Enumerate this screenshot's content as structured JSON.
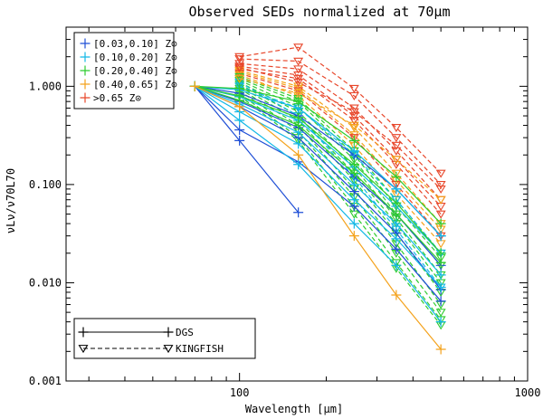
{
  "chart_data": {
    "type": "line",
    "title": "Observed SEDs normalized at 70μm",
    "xlabel": "Wavelength [μm]",
    "ylabel": "νLν/ν70L70",
    "xscale": "log",
    "yscale": "log",
    "xlim": [
      25,
      1000
    ],
    "ylim": [
      0.001,
      4.0
    ],
    "x_ticks": [
      100,
      1000
    ],
    "x_tick_labels": [
      "100",
      "1000"
    ],
    "y_ticks": [
      0.001,
      0.01,
      0.1,
      1.0
    ],
    "y_tick_labels": [
      "0.001",
      "0.010",
      "0.100",
      "1.000"
    ],
    "metallicity_legend": [
      {
        "label": "[0.03,0.10] Z⊙",
        "color": "#1f4fd6"
      },
      {
        "label": "[0.10,0.20] Z⊙",
        "color": "#12b8e6"
      },
      {
        "label": "[0.20,0.40] Z⊙",
        "color": "#2ecc2e"
      },
      {
        "label": "[0.40,0.65] Z⊙",
        "color": "#f4a21c"
      },
      {
        "label": ">0.65 Z⊙",
        "color": "#e8462a"
      }
    ],
    "survey_legend": [
      {
        "label": "DGS",
        "linestyle": "solid",
        "marker": "+"
      },
      {
        "label": "KINGFISH",
        "linestyle": "dashed",
        "marker": "triangle-down"
      }
    ],
    "series": [
      {
        "name": "DGS 1",
        "survey": "DGS",
        "bin": 0,
        "x": [
          70,
          100,
          160
        ],
        "y": [
          1.0,
          0.28,
          0.052
        ]
      },
      {
        "name": "DGS 2",
        "survey": "DGS",
        "bin": 0,
        "x": [
          70,
          100,
          160,
          250,
          350,
          500
        ],
        "y": [
          1.0,
          0.36,
          0.17,
          0.06,
          0.022,
          0.0065
        ]
      },
      {
        "name": "DGS 3",
        "survey": "DGS",
        "bin": 0,
        "x": [
          70,
          100,
          160,
          250,
          350,
          500
        ],
        "y": [
          1.0,
          0.62,
          0.3,
          0.085,
          0.032,
          0.0085
        ]
      },
      {
        "name": "DGS 4",
        "survey": "DGS",
        "bin": 0,
        "x": [
          70,
          100,
          160,
          250,
          350,
          500
        ],
        "y": [
          1.0,
          0.85,
          0.5,
          0.2,
          0.09,
          0.03
        ]
      },
      {
        "name": "DGS 5",
        "survey": "DGS",
        "bin": 0,
        "x": [
          70,
          100,
          160,
          250,
          350,
          500
        ],
        "y": [
          1.0,
          0.7,
          0.38,
          0.12,
          0.05,
          0.015
        ]
      },
      {
        "name": "DGS 6",
        "survey": "DGS",
        "bin": 1,
        "x": [
          70,
          100,
          160,
          250,
          350,
          500
        ],
        "y": [
          1.0,
          0.45,
          0.16,
          0.04,
          0.015,
          0.004
        ]
      },
      {
        "name": "DGS 7",
        "survey": "DGS",
        "bin": 1,
        "x": [
          70,
          100,
          160,
          250,
          350,
          500
        ],
        "y": [
          1.0,
          0.78,
          0.45,
          0.15,
          0.06,
          0.02
        ]
      },
      {
        "name": "DGS 8",
        "survey": "DGS",
        "bin": 1,
        "x": [
          70,
          100,
          160,
          250,
          350,
          500
        ],
        "y": [
          1.0,
          0.92,
          0.6,
          0.22,
          0.09,
          0.03
        ]
      },
      {
        "name": "DGS 9",
        "survey": "DGS",
        "bin": 1,
        "x": [
          70,
          100,
          160,
          250,
          350,
          500
        ],
        "y": [
          1.0,
          0.55,
          0.26,
          0.07,
          0.028,
          0.009
        ]
      },
      {
        "name": "DGS 10",
        "survey": "DGS",
        "bin": 1,
        "x": [
          70,
          100,
          160,
          250,
          350,
          500
        ],
        "y": [
          1.0,
          0.66,
          0.34,
          0.1,
          0.04,
          0.012
        ]
      },
      {
        "name": "DGS 11",
        "survey": "DGS",
        "bin": 2,
        "x": [
          70,
          100,
          160,
          250,
          350,
          500
        ],
        "y": [
          1.0,
          0.8,
          0.48,
          0.16,
          0.065,
          0.02
        ]
      },
      {
        "name": "DGS 12",
        "survey": "DGS",
        "bin": 2,
        "x": [
          70,
          100,
          160,
          250,
          350,
          500
        ],
        "y": [
          1.0,
          0.95,
          0.7,
          0.28,
          0.12,
          0.04
        ]
      },
      {
        "name": "DGS 13",
        "survey": "DGS",
        "bin": 2,
        "x": [
          70,
          100,
          160,
          250,
          350,
          500
        ],
        "y": [
          1.0,
          0.72,
          0.4,
          0.13,
          0.05,
          0.016
        ]
      },
      {
        "name": "DGS 14",
        "survey": "DGS",
        "bin": 3,
        "x": [
          70,
          100,
          160,
          250,
          350,
          500
        ],
        "y": [
          1.0,
          0.62,
          0.2,
          0.03,
          0.0075,
          0.0021
        ]
      },
      {
        "name": "KINGFISH 1",
        "survey": "KINGFISH",
        "bin": 4,
        "x": [
          100,
          160,
          250,
          350,
          500
        ],
        "y": [
          2.0,
          2.5,
          0.95,
          0.38,
          0.13
        ]
      },
      {
        "name": "KINGFISH 2",
        "survey": "KINGFISH",
        "bin": 4,
        "x": [
          100,
          160,
          250,
          350,
          500
        ],
        "y": [
          1.9,
          1.8,
          0.8,
          0.3,
          0.1
        ]
      },
      {
        "name": "KINGFISH 3",
        "survey": "KINGFISH",
        "bin": 4,
        "x": [
          100,
          160,
          250,
          350,
          500
        ],
        "y": [
          1.7,
          1.5,
          0.6,
          0.22,
          0.07
        ]
      },
      {
        "name": "KINGFISH 4",
        "survey": "KINGFISH",
        "bin": 4,
        "x": [
          100,
          160,
          250,
          350,
          500
        ],
        "y": [
          1.6,
          1.3,
          0.5,
          0.18,
          0.06
        ]
      },
      {
        "name": "KINGFISH 5",
        "survey": "KINGFISH",
        "bin": 4,
        "x": [
          100,
          160,
          250,
          350,
          500
        ],
        "y": [
          1.5,
          1.2,
          0.45,
          0.16,
          0.05
        ]
      },
      {
        "name": "KINGFISH 6",
        "survey": "KINGFISH",
        "bin": 3,
        "x": [
          100,
          160,
          250,
          350,
          500
        ],
        "y": [
          1.45,
          1.0,
          0.38,
          0.13,
          0.04
        ]
      },
      {
        "name": "KINGFISH 7",
        "survey": "KINGFISH",
        "bin": 3,
        "x": [
          100,
          160,
          250,
          350,
          500
        ],
        "y": [
          1.4,
          0.95,
          0.32,
          0.11,
          0.035
        ]
      },
      {
        "name": "KINGFISH 8",
        "survey": "KINGFISH",
        "bin": 4,
        "x": [
          100,
          160,
          250,
          350,
          500
        ],
        "y": [
          1.35,
          0.9,
          0.3,
          0.1,
          0.03
        ]
      },
      {
        "name": "KINGFISH 9",
        "survey": "KINGFISH",
        "bin": 3,
        "x": [
          100,
          160,
          250,
          350,
          500
        ],
        "y": [
          1.3,
          0.8,
          0.25,
          0.08,
          0.025
        ]
      },
      {
        "name": "KINGFISH 10",
        "survey": "KINGFISH",
        "bin": 2,
        "x": [
          100,
          160,
          250,
          350,
          500
        ],
        "y": [
          1.25,
          0.75,
          0.22,
          0.07,
          0.02
        ]
      },
      {
        "name": "KINGFISH 11",
        "survey": "KINGFISH",
        "bin": 2,
        "x": [
          100,
          160,
          250,
          350,
          500
        ],
        "y": [
          1.2,
          0.7,
          0.2,
          0.06,
          0.018
        ]
      },
      {
        "name": "KINGFISH 12",
        "survey": "KINGFISH",
        "bin": 2,
        "x": [
          100,
          160,
          250,
          350,
          500
        ],
        "y": [
          1.15,
          0.62,
          0.18,
          0.05,
          0.015
        ]
      },
      {
        "name": "KINGFISH 13",
        "survey": "KINGFISH",
        "bin": 2,
        "x": [
          100,
          160,
          250,
          350,
          500
        ],
        "y": [
          1.1,
          0.55,
          0.15,
          0.045,
          0.012
        ]
      },
      {
        "name": "KINGFISH 14",
        "survey": "KINGFISH",
        "bin": 2,
        "x": [
          100,
          160,
          250,
          350,
          500
        ],
        "y": [
          1.05,
          0.5,
          0.13,
          0.04,
          0.01
        ]
      },
      {
        "name": "KINGFISH 15",
        "survey": "KINGFISH",
        "bin": 2,
        "x": [
          100,
          160,
          250,
          350,
          500
        ],
        "y": [
          1.0,
          0.45,
          0.11,
          0.032,
          0.008
        ]
      },
      {
        "name": "KINGFISH 16",
        "survey": "KINGFISH",
        "bin": 2,
        "x": [
          100,
          160,
          250,
          350,
          500
        ],
        "y": [
          0.95,
          0.4,
          0.09,
          0.025,
          0.006
        ]
      },
      {
        "name": "KINGFISH 17",
        "survey": "KINGFISH",
        "bin": 2,
        "x": [
          100,
          160,
          250,
          350,
          500
        ],
        "y": [
          0.9,
          0.35,
          0.075,
          0.02,
          0.005
        ]
      },
      {
        "name": "KINGFISH 18",
        "survey": "KINGFISH",
        "bin": 2,
        "x": [
          100,
          160,
          250,
          350,
          500
        ],
        "y": [
          0.85,
          0.3,
          0.06,
          0.016,
          0.0042
        ]
      },
      {
        "name": "KINGFISH 19",
        "survey": "KINGFISH",
        "bin": 2,
        "x": [
          100,
          160,
          250,
          350,
          500
        ],
        "y": [
          0.8,
          0.28,
          0.05,
          0.014,
          0.0037
        ]
      },
      {
        "name": "KINGFISH 20",
        "survey": "KINGFISH",
        "bin": 1,
        "x": [
          100,
          160,
          250,
          350,
          500
        ],
        "y": [
          1.1,
          0.5,
          0.12,
          0.035,
          0.009
        ]
      },
      {
        "name": "KINGFISH 21",
        "survey": "KINGFISH",
        "bin": 1,
        "x": [
          100,
          160,
          250,
          350,
          500
        ],
        "y": [
          1.0,
          0.6,
          0.2,
          0.07,
          0.02
        ]
      },
      {
        "name": "KINGFISH 22",
        "survey": "KINGFISH",
        "bin": 4,
        "x": [
          100,
          160,
          250,
          350,
          500
        ],
        "y": [
          1.55,
          1.1,
          0.55,
          0.25,
          0.09
        ]
      },
      {
        "name": "KINGFISH 23",
        "survey": "KINGFISH",
        "bin": 3,
        "x": [
          100,
          160,
          250,
          350,
          500
        ],
        "y": [
          1.2,
          0.85,
          0.4,
          0.18,
          0.07
        ]
      }
    ]
  }
}
